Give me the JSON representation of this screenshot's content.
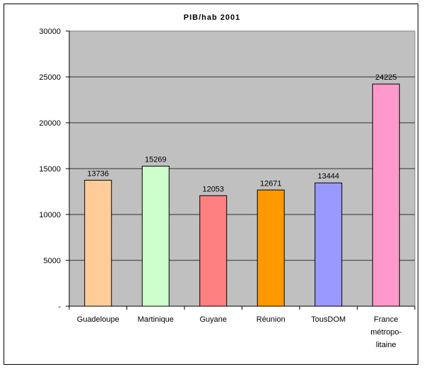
{
  "chart_data": {
    "type": "bar",
    "title": "PIB/hab 2001",
    "xlabel": "",
    "ylabel": "",
    "categories": [
      "Guadeloupe",
      "Martinique",
      "Guyane",
      "Réunion",
      "TousDOM",
      "France métropolitaine"
    ],
    "category_lines": [
      [
        "Guadeloupe"
      ],
      [
        "Martinique"
      ],
      [
        "Guyane"
      ],
      [
        "Réunion"
      ],
      [
        "TousDOM"
      ],
      [
        "France",
        "métropo-",
        "litaine"
      ]
    ],
    "values": [
      13736,
      15269,
      12053,
      12671,
      13444,
      24225
    ],
    "value_labels": [
      "13736",
      "15269",
      "12053",
      "12671",
      "13444",
      "24225"
    ],
    "bar_colors": [
      "#ffcc99",
      "#ccffcc",
      "#ff8080",
      "#ff9900",
      "#9999ff",
      "#ff99cc"
    ],
    "ylim": [
      0,
      30000
    ],
    "yticks": [
      0,
      5000,
      10000,
      15000,
      20000,
      25000,
      30000
    ],
    "ytick_labels": [
      "-",
      "5000",
      "10000",
      "15000",
      "20000",
      "25000",
      "30000"
    ],
    "grid": true,
    "plot_background": "#c0c0c0",
    "legend": "none"
  }
}
